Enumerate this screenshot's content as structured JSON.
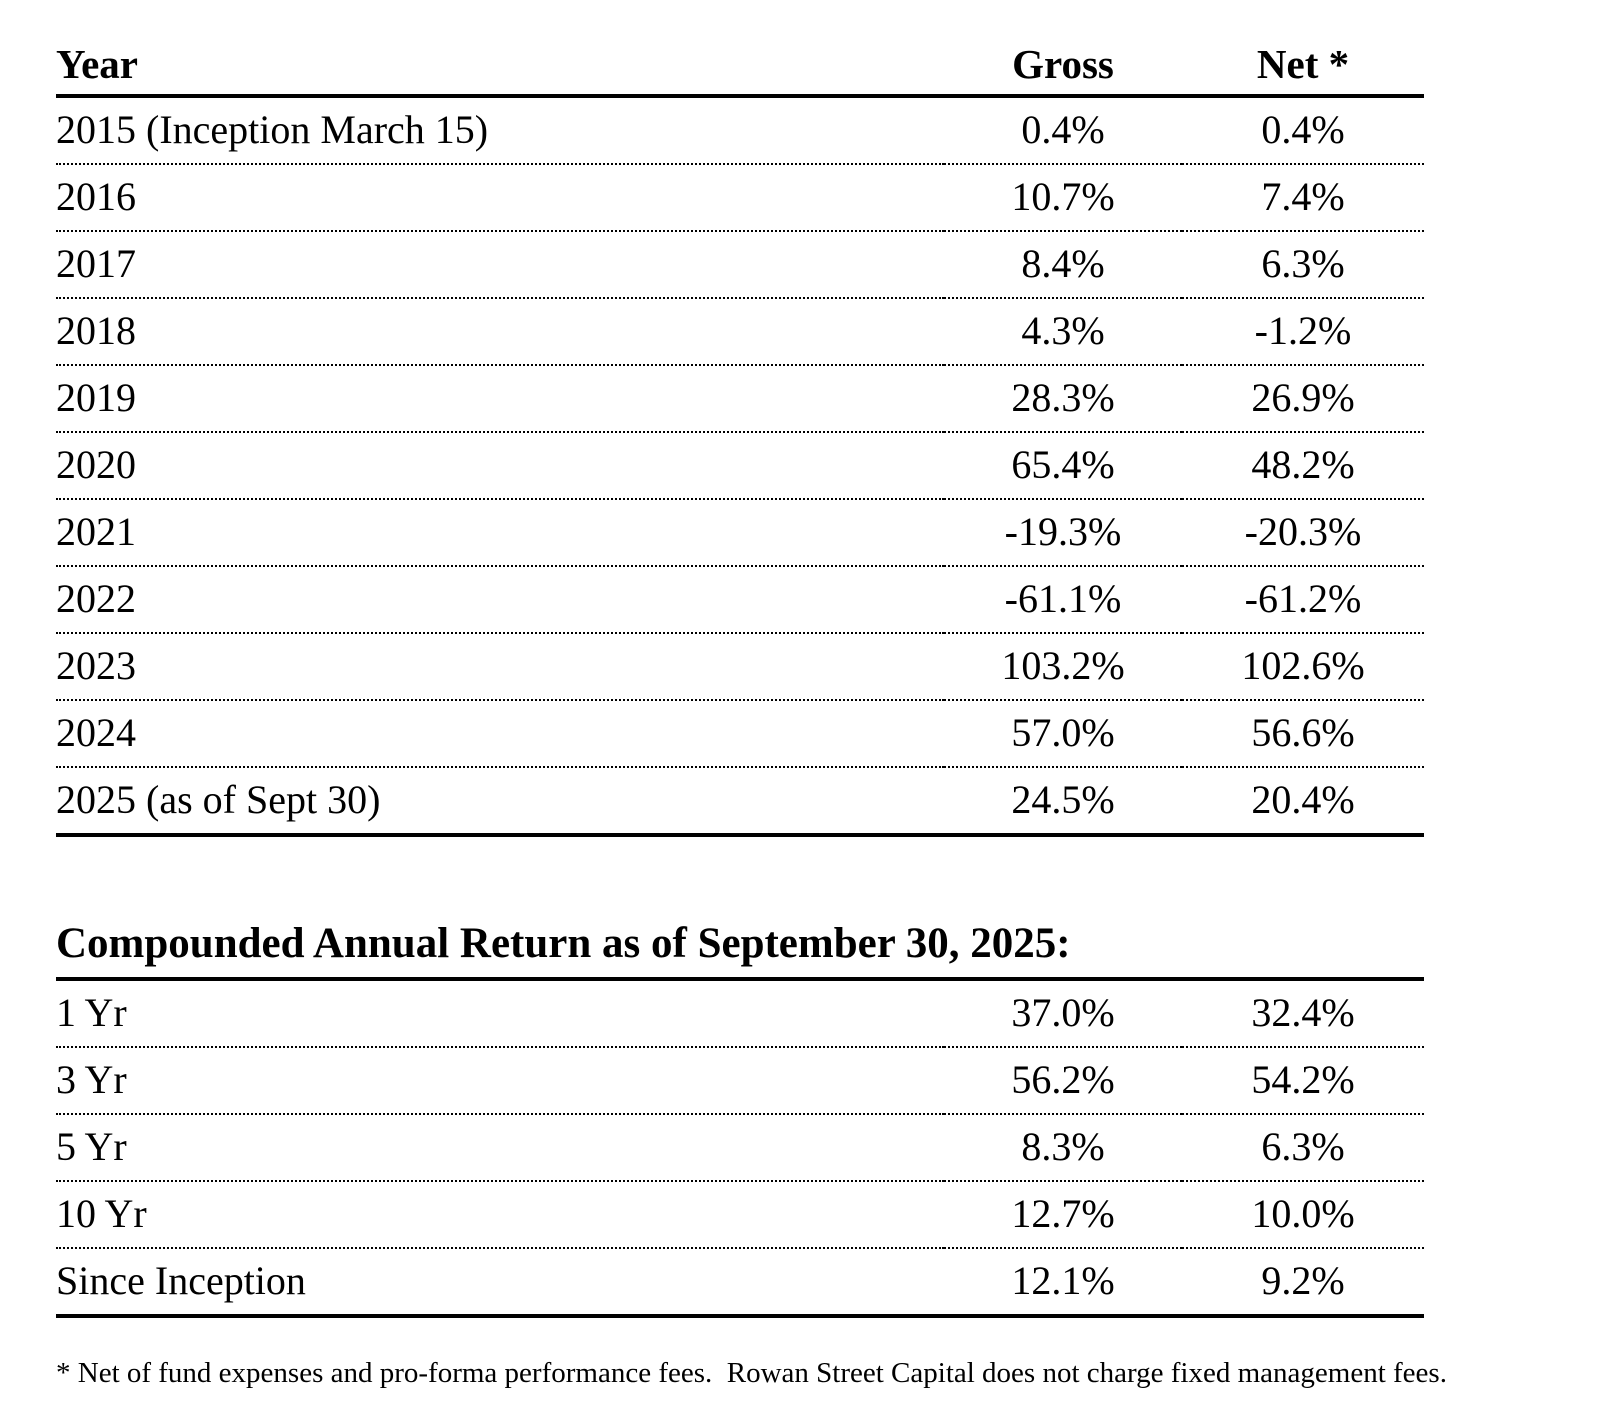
{
  "page": {
    "background_color": "#ffffff",
    "text_color": "#000000",
    "rule_color": "#000000"
  },
  "returns_table": {
    "headers": {
      "year": "Year",
      "gross": "Gross",
      "net": "Net *"
    },
    "rows": [
      {
        "label": "2015 (Inception March 15)",
        "gross": "0.4%",
        "net": "0.4%"
      },
      {
        "label": "2016",
        "gross": "10.7%",
        "net": "7.4%"
      },
      {
        "label": "2017",
        "gross": "8.4%",
        "net": "6.3%"
      },
      {
        "label": "2018",
        "gross": "4.3%",
        "net": "-1.2%"
      },
      {
        "label": "2019",
        "gross": "28.3%",
        "net": "26.9%"
      },
      {
        "label": "2020",
        "gross": "65.4%",
        "net": "48.2%"
      },
      {
        "label": "2021",
        "gross": "-19.3%",
        "net": "-20.3%"
      },
      {
        "label": "2022",
        "gross": "-61.1%",
        "net": "-61.2%"
      },
      {
        "label": "2023",
        "gross": "103.2%",
        "net": "102.6%"
      },
      {
        "label": "2024",
        "gross": "57.0%",
        "net": "56.6%"
      },
      {
        "label": "2025 (as of Sept 30)",
        "gross": "24.5%",
        "net": "20.4%"
      }
    ]
  },
  "cagr_section": {
    "title": "Compounded Annual Return as of September 30, 2025:",
    "rows": [
      {
        "label": "1 Yr",
        "gross": "37.0%",
        "net": "32.4%"
      },
      {
        "label": "3 Yr",
        "gross": "56.2%",
        "net": "54.2%"
      },
      {
        "label": "5 Yr",
        "gross": "8.3%",
        "net": "6.3%"
      },
      {
        "label": "10 Yr",
        "gross": "12.7%",
        "net": "10.0%"
      },
      {
        "label": "Since Inception",
        "gross": "12.1%",
        "net": "9.2%"
      }
    ]
  },
  "footnote": "* Net of fund expenses and pro-forma performance fees.  Rowan Street Capital does not charge fixed management fees."
}
